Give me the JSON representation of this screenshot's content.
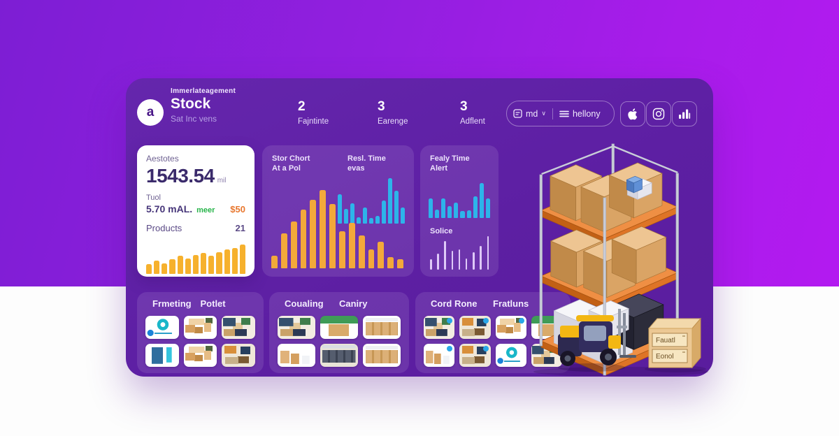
{
  "header": {
    "logo_letter": "a",
    "app_label": "Immerlateagement",
    "title": "Stock",
    "subtitle": "Sat Inc vens",
    "stats": [
      {
        "value": "2",
        "label": "Fajntinte"
      },
      {
        "value": "3",
        "label": "Earenge"
      },
      {
        "value": "3",
        "label": "Adflent"
      }
    ],
    "dropdown": {
      "label": "md",
      "caret": "∨"
    },
    "menu": {
      "label": "hellony"
    }
  },
  "summary_card": {
    "label": "Aestotes",
    "value": "1543.54",
    "unit": "mil",
    "metric_label": "Tuol",
    "metric_value": "5.70 mAL.",
    "metric_tag": "meer",
    "metric_amount": "$50",
    "products_label": "Products",
    "products_count": "21"
  },
  "chart_panels": {
    "stock": {
      "title": "Stor Chort",
      "subtitle": "At a Pol"
    },
    "realtime": {
      "title": "Resl. Time",
      "subtitle": "evas"
    },
    "alert": {
      "title": "Fealy Time",
      "subtitle": "Alert"
    },
    "solice": {
      "label": "Solice"
    }
  },
  "chart_data": [
    {
      "id": "products-mini",
      "type": "bar",
      "title": "Products mini trend (white card)",
      "values": [
        28,
        38,
        30,
        42,
        52,
        44,
        55,
        60,
        52,
        62,
        70,
        75,
        85
      ],
      "color": "#F6B12D",
      "axes": "none",
      "units": "relative bar height %, no axis labels shown"
    },
    {
      "id": "stock-chart",
      "type": "bar",
      "title": "Stor Chort / At a Pol",
      "values": [
        12,
        34,
        45,
        57,
        66,
        76,
        62,
        36,
        44,
        32,
        18,
        26,
        11,
        9
      ],
      "color": "#F3A93A",
      "axes": "none",
      "units": "relative bar height %, no axis labels shown"
    },
    {
      "id": "realtime-evas",
      "type": "bar",
      "title": "Resl. Time / evas",
      "values": [
        55,
        28,
        38,
        12,
        30,
        10,
        14,
        44,
        85,
        62,
        30
      ],
      "color": "#2DB4EA",
      "axes": "none",
      "units": "relative bar height %, no axis labels shown"
    },
    {
      "id": "fealy-alert",
      "type": "bar",
      "title": "Fealy Time / Alert",
      "values": [
        45,
        20,
        45,
        28,
        35,
        16,
        18,
        50,
        80,
        45
      ],
      "color": "#2DB4EA",
      "axes": "none",
      "units": "relative bar height %, no axis labels shown"
    },
    {
      "id": "solice",
      "type": "bar",
      "title": "Solice",
      "values": [
        28,
        45,
        78,
        52,
        56,
        30,
        48,
        66,
        92
      ],
      "color": "#DFC9F8",
      "axes": "none",
      "units": "relative bar height %, no axis labels shown"
    }
  ],
  "product_sections": [
    {
      "headers": [
        "Frmeting",
        "Potlet"
      ]
    },
    {
      "headers": [
        "Coualing",
        "Caniry"
      ]
    },
    {
      "headers": [
        "Cord Rone",
        "Fratluns"
      ]
    }
  ],
  "illustration": {
    "box_label_line1": "Fauatl",
    "box_label_line2": "Eonol"
  },
  "colors": {
    "bg_gradient_start": "#7D1ED4",
    "bg_gradient_end": "#B31AF0",
    "bg_bottom": "#FDFDFD",
    "dashboard_purple": "#5E21A7",
    "panel_overlay": "rgba(255,255,255,0.10)",
    "accent_yellow": "#F3A93A",
    "accent_blue": "#2DB4EA",
    "accent_green": "#27B44A",
    "accent_orange": "#E8772E",
    "shelf_orange": "#DE7426",
    "box_tan": "#DAA465"
  }
}
